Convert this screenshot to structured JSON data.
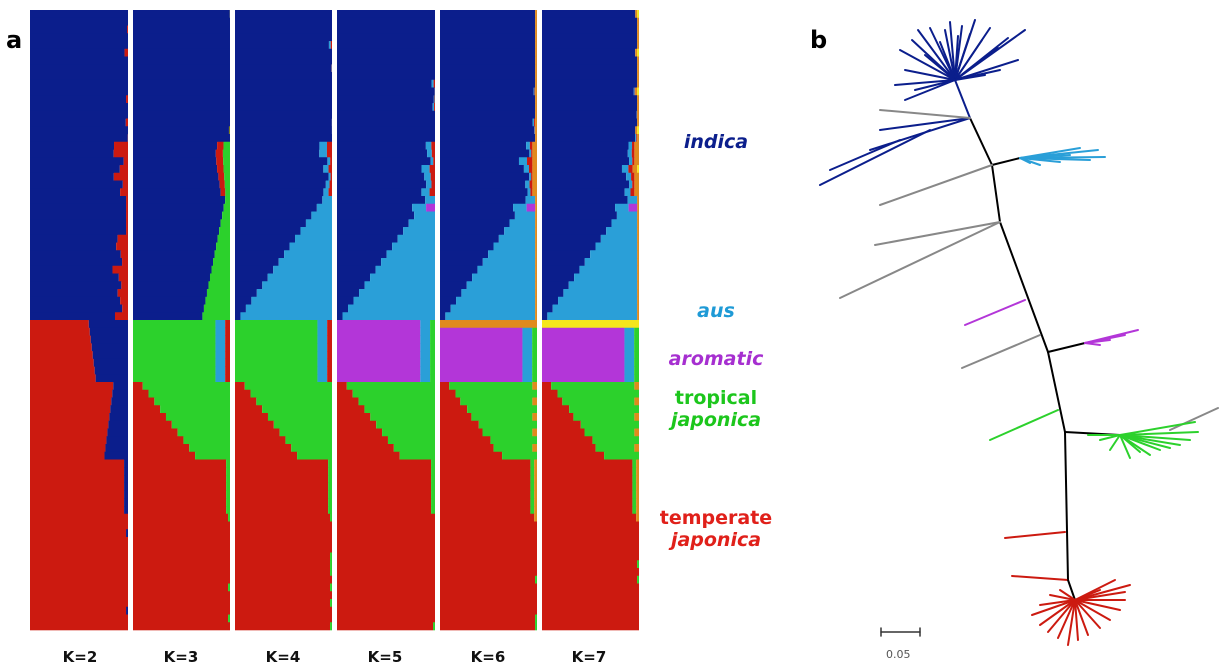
{
  "panel_a_label": "a",
  "panel_b_label": "b",
  "k_labels": [
    "K=2",
    "K=3",
    "K=4",
    "K=5",
    "K=6",
    "K=7"
  ],
  "groups": {
    "indica": {
      "italic": "indica",
      "plain": "",
      "color": "#0b1e8c"
    },
    "aus": {
      "italic": "aus",
      "plain": "",
      "color": "#1e9ad6"
    },
    "aromatic": {
      "italic": "aromatic",
      "plain": "",
      "color": "#a62fd0"
    },
    "tropical_japonica": {
      "plain": "tropical",
      "italic": "japonica",
      "color": "#1cc61c"
    },
    "temperate_japonica": {
      "plain": "temperate",
      "italic": "japonica",
      "color": "#e0201a"
    }
  },
  "colors": {
    "indica": "#0b1e8c",
    "aus": "#2a9fd8",
    "aromatic": "#b336d8",
    "tropical": "#2cd12c",
    "temperate": "#cc1a10",
    "orange": "#e08a1e",
    "yellow": "#f5e61c",
    "gray": "#888888",
    "black": "#000000"
  },
  "scale_bar_label": "0.05"
}
